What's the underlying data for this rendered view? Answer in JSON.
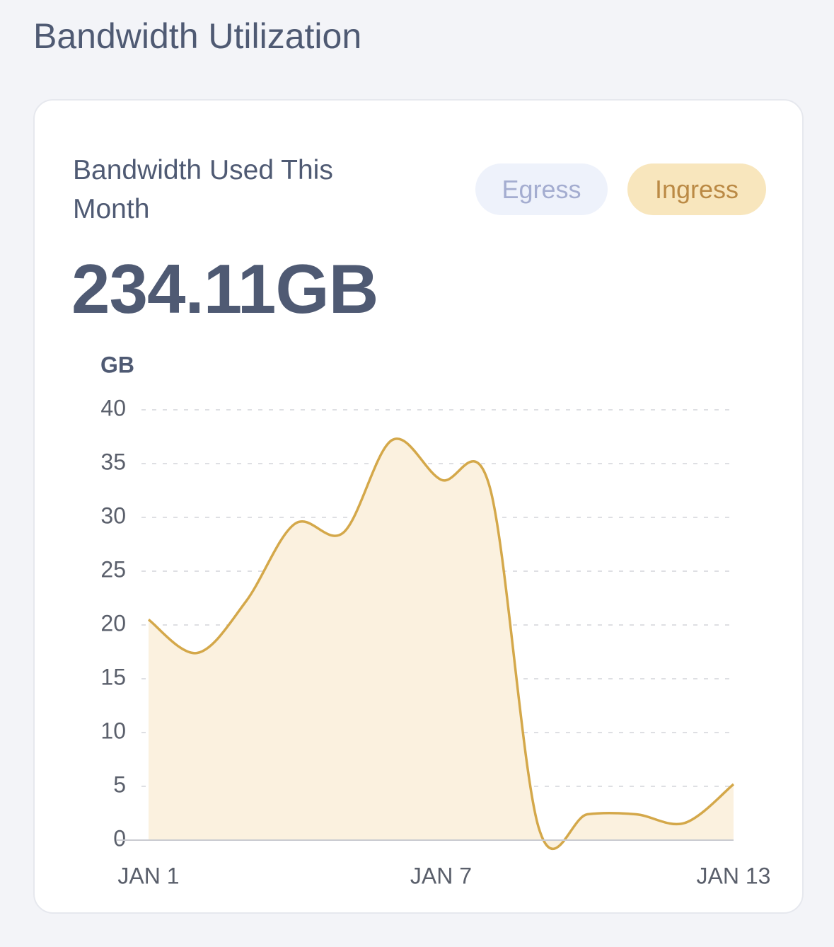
{
  "header": {
    "title": "Bandwidth Utilization"
  },
  "card": {
    "title": "Bandwidth Used This Month",
    "total": "234.11GB",
    "toggles": {
      "egress": "Egress"
    }
  },
  "chart_data": {
    "type": "area",
    "y_label": "GB",
    "categories": [
      "JAN 1",
      null,
      null,
      null,
      null,
      null,
      "JAN 7",
      null,
      null,
      null,
      null,
      null,
      "JAN 13"
    ],
    "series": [
      {
        "name": "Ingress",
        "color": "#d4a84a",
        "fill": "#fbf1df",
        "values": [
          20.5,
          17.4,
          22.2,
          29.4,
          28.6,
          37.2,
          33.5,
          32.8,
          1.2,
          2.4,
          2.4,
          1.6,
          5.2
        ]
      }
    ],
    "ylim": [
      0,
      40
    ],
    "yticks": [
      0,
      5,
      10,
      15,
      20,
      25,
      30,
      35,
      40
    ],
    "grid": true
  }
}
